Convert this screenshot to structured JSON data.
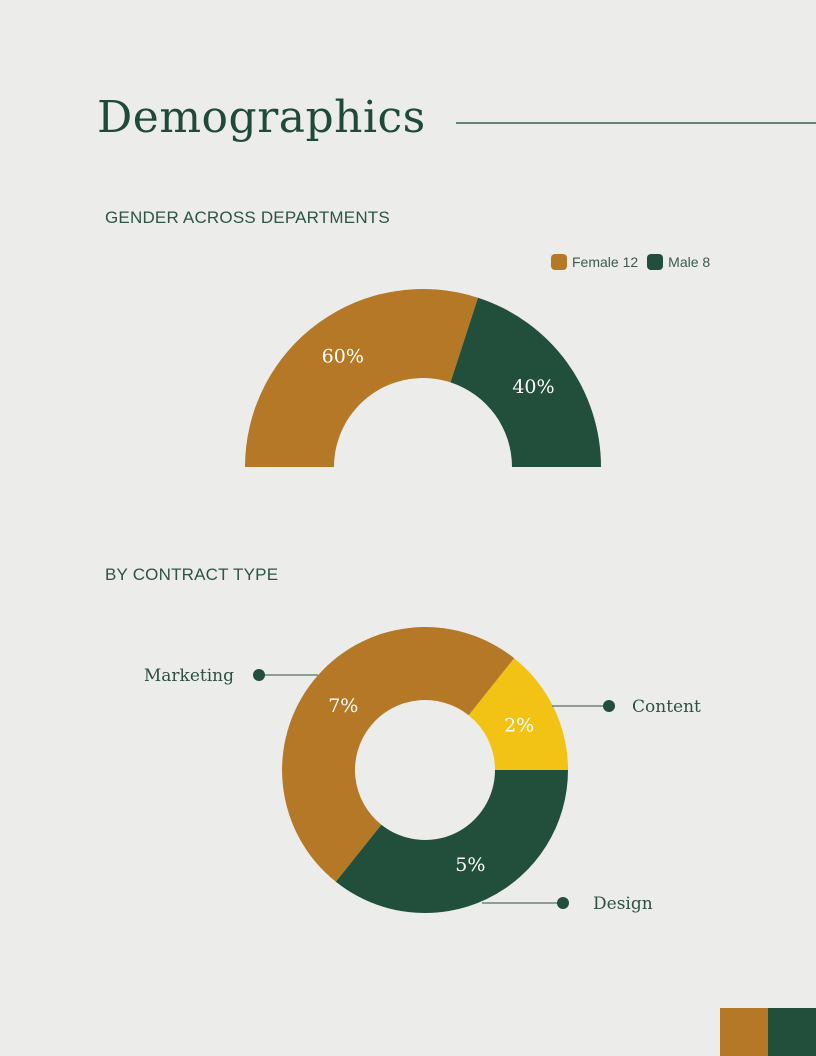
{
  "page": {
    "title": "Demographics"
  },
  "colors": {
    "background": "#ecedea",
    "female": "#b57826",
    "male": "#214f3c",
    "content": "#f2c314",
    "ink": "#1f4a3a"
  },
  "chart_data": [
    {
      "type": "pie",
      "variant": "half-donut",
      "title": "GENDER ACROSS DEPARTMENTS",
      "legend_position": "top-right",
      "series": [
        {
          "name": "Female",
          "count": 12,
          "value": 60,
          "label": "60%",
          "legend": "Female 12",
          "color": "#b57826"
        },
        {
          "name": "Male",
          "count": 8,
          "value": 40,
          "label": "40%",
          "legend": "Male 8",
          "color": "#214f3c"
        }
      ]
    },
    {
      "type": "pie",
      "variant": "donut",
      "title": "BY CONTRACT TYPE",
      "series": [
        {
          "name": "Marketing",
          "value": 7,
          "label": "7%",
          "color": "#b57826"
        },
        {
          "name": "Content",
          "value": 2,
          "label": "2%",
          "color": "#f2c314"
        },
        {
          "name": "Design",
          "value": 5,
          "label": "5%",
          "color": "#214f3c"
        }
      ]
    }
  ],
  "corner_blocks": [
    {
      "color": "#b57826"
    },
    {
      "color": "#214f3c"
    }
  ]
}
